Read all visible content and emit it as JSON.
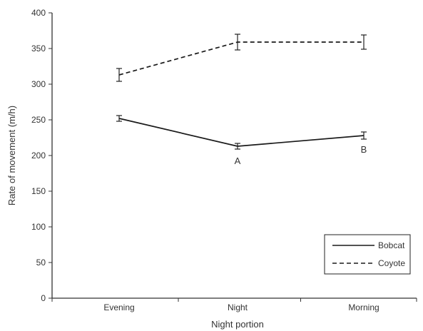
{
  "chart_data": {
    "type": "line",
    "xlabel": "Night portion",
    "ylabel": "Rate of movement (m/h)",
    "categories": [
      "Evening",
      "Night",
      "Morning"
    ],
    "ylim": [
      0,
      400
    ],
    "yticks": [
      0,
      50,
      100,
      150,
      200,
      250,
      300,
      350,
      400
    ],
    "grid": false,
    "legend_position": "bottom-right",
    "series": [
      {
        "name": "Bobcat",
        "line_style": "solid",
        "color": "#1a1a1a",
        "values": [
          252,
          213,
          228
        ],
        "error": [
          4,
          4,
          5
        ]
      },
      {
        "name": "Coyote",
        "line_style": "dashed",
        "color": "#1a1a1a",
        "values": [
          313,
          359,
          359
        ],
        "error": [
          9,
          11,
          10
        ]
      }
    ],
    "annotations": [
      {
        "text": "A",
        "category": "Night",
        "y": 193
      },
      {
        "text": "B",
        "category": "Morning",
        "y": 209
      }
    ]
  }
}
